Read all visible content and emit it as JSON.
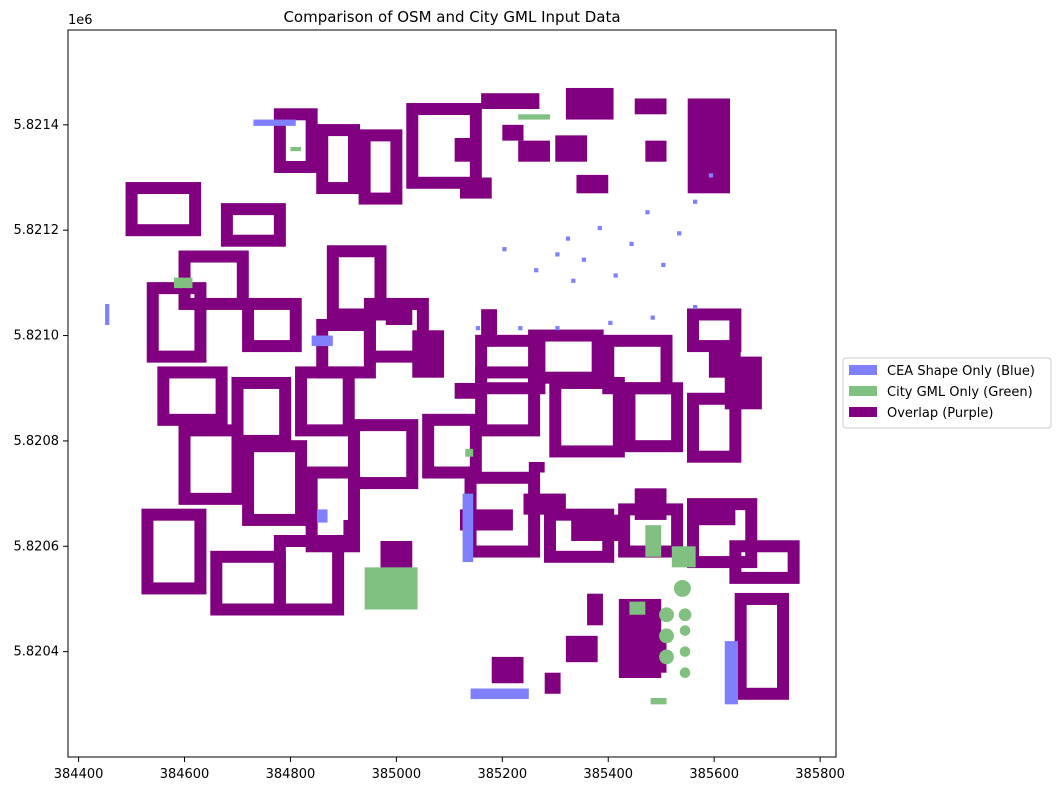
{
  "chart_data": {
    "type": "map",
    "title": "Comparison of OSM and City GML Input Data",
    "y_offset_label": "1e6",
    "xlim": [
      384380,
      385830
    ],
    "ylim": [
      5820200,
      5821580
    ],
    "x_ticks": [
      384400,
      384600,
      384800,
      385000,
      385200,
      385400,
      385600,
      385800
    ],
    "x_tick_labels": [
      "384400",
      "384600",
      "384800",
      "385000",
      "385200",
      "385400",
      "385600",
      "385800"
    ],
    "y_ticks": [
      5820400,
      5820600,
      5820800,
      5821000,
      5821200,
      5821400
    ],
    "y_tick_labels": [
      "5.8204",
      "5.8206",
      "5.8208",
      "5.8210",
      "5.8212",
      "5.8214"
    ],
    "grid": false,
    "legend_position": "right",
    "series": [
      {
        "name": "CEA Shape Only (Blue)",
        "color": "#8080ff",
        "rects": [
          [
            384730,
            5821398,
            80,
            12
          ],
          [
            384840,
            5820980,
            40,
            20
          ],
          [
            384850,
            5820645,
            20,
            25
          ],
          [
            385125,
            5820570,
            20,
            130
          ],
          [
            385140,
            5820310,
            110,
            20
          ],
          [
            385620,
            5820300,
            25,
            120
          ],
          [
            384450,
            5821020,
            8,
            40
          ],
          [
            385300,
            5821150,
            8,
            8
          ],
          [
            385320,
            5821180,
            8,
            8
          ],
          [
            385350,
            5821140,
            8,
            8
          ],
          [
            385380,
            5821200,
            8,
            8
          ],
          [
            385410,
            5821110,
            8,
            8
          ],
          [
            385440,
            5821170,
            8,
            8
          ],
          [
            385470,
            5821230,
            8,
            8
          ],
          [
            385500,
            5821130,
            8,
            8
          ],
          [
            385530,
            5821190,
            8,
            8
          ],
          [
            385560,
            5821250,
            8,
            8
          ],
          [
            385590,
            5821300,
            8,
            8
          ],
          [
            385330,
            5821100,
            8,
            8
          ],
          [
            385260,
            5821120,
            8,
            8
          ],
          [
            385200,
            5821160,
            8,
            8
          ],
          [
            385150,
            5821010,
            8,
            8
          ],
          [
            385230,
            5821010,
            8,
            8
          ],
          [
            385300,
            5821010,
            8,
            8
          ],
          [
            385400,
            5821020,
            8,
            8
          ],
          [
            385480,
            5821030,
            8,
            8
          ],
          [
            385560,
            5821050,
            8,
            8
          ]
        ]
      },
      {
        "name": "City GML Only (Green)",
        "color": "#80c080",
        "rects": [
          [
            384940,
            5820480,
            100,
            80
          ],
          [
            385470,
            5820580,
            30,
            60
          ],
          [
            385520,
            5820560,
            45,
            40
          ],
          [
            385480,
            5820300,
            30,
            12
          ],
          [
            384580,
            5821090,
            35,
            20
          ],
          [
            385440,
            5820470,
            30,
            25
          ],
          [
            385230,
            5821410,
            60,
            10
          ],
          [
            384800,
            5821350,
            20,
            8
          ],
          [
            385130,
            5820770,
            15,
            15
          ]
        ],
        "circles": [
          [
            385540,
            5820520,
            16
          ],
          [
            385510,
            5820470,
            14
          ],
          [
            385510,
            5820430,
            14
          ],
          [
            385510,
            5820390,
            14
          ],
          [
            385545,
            5820470,
            12
          ],
          [
            385545,
            5820440,
            10
          ],
          [
            385545,
            5820400,
            10
          ],
          [
            385545,
            5820360,
            10
          ]
        ]
      },
      {
        "name": "Overlap (Purple)",
        "color": "#800080",
        "rects": [
          [
            385160,
            5821430,
            110,
            30
          ],
          [
            385320,
            5821410,
            90,
            60
          ],
          [
            385450,
            5821420,
            60,
            30
          ],
          [
            385550,
            5821270,
            80,
            180
          ],
          [
            385110,
            5821330,
            40,
            45
          ],
          [
            385120,
            5821260,
            60,
            40
          ],
          [
            385230,
            5821330,
            60,
            40
          ],
          [
            385300,
            5821330,
            60,
            50
          ],
          [
            385340,
            5821270,
            60,
            35
          ],
          [
            385470,
            5821330,
            40,
            40
          ],
          [
            385200,
            5821370,
            40,
            30
          ],
          [
            384970,
            5820550,
            60,
            60
          ],
          [
            385320,
            5820380,
            60,
            50
          ],
          [
            385420,
            5820350,
            80,
            150
          ],
          [
            385490,
            5820360,
            20,
            80
          ],
          [
            385360,
            5820450,
            30,
            60
          ],
          [
            385180,
            5820340,
            60,
            50
          ],
          [
            385280,
            5820320,
            30,
            40
          ],
          [
            385160,
            5821000,
            30,
            50
          ],
          [
            385030,
            5820920,
            60,
            90
          ],
          [
            384980,
            5821020,
            50,
            40
          ],
          [
            385110,
            5820880,
            60,
            30
          ],
          [
            385590,
            5820920,
            60,
            60
          ],
          [
            385620,
            5820860,
            70,
            100
          ],
          [
            385120,
            5820630,
            100,
            40
          ],
          [
            385240,
            5820660,
            80,
            40
          ],
          [
            385330,
            5820610,
            90,
            50
          ],
          [
            385450,
            5820650,
            60,
            60
          ],
          [
            385560,
            5820640,
            80,
            40
          ],
          [
            384900,
            5820600,
            20,
            50
          ],
          [
            385140,
            5820730,
            20,
            20
          ],
          [
            385250,
            5820740,
            30,
            20
          ],
          [
            385320,
            5820770,
            40,
            20
          ]
        ],
        "rings": [
          [
            384500,
            5821200,
            120,
            80
          ],
          [
            384680,
            5821180,
            100,
            60
          ],
          [
            384540,
            5820960,
            90,
            130
          ],
          [
            384600,
            5821060,
            110,
            90
          ],
          [
            384720,
            5820980,
            90,
            80
          ],
          [
            384860,
            5820930,
            90,
            90
          ],
          [
            384880,
            5821040,
            90,
            120
          ],
          [
            384950,
            5820960,
            100,
            100
          ],
          [
            384560,
            5820840,
            110,
            90
          ],
          [
            384700,
            5820800,
            90,
            110
          ],
          [
            384820,
            5820820,
            90,
            110
          ],
          [
            384600,
            5820690,
            100,
            130
          ],
          [
            384720,
            5820650,
            100,
            140
          ],
          [
            384840,
            5820600,
            80,
            140
          ],
          [
            384530,
            5820520,
            100,
            140
          ],
          [
            384660,
            5820480,
            120,
            100
          ],
          [
            384780,
            5820480,
            110,
            130
          ],
          [
            384920,
            5820720,
            110,
            110
          ],
          [
            385060,
            5820740,
            90,
            100
          ],
          [
            385160,
            5820820,
            100,
            110
          ],
          [
            385300,
            5820780,
            120,
            130
          ],
          [
            385440,
            5820790,
            90,
            110
          ],
          [
            385560,
            5820770,
            80,
            110
          ],
          [
            385140,
            5820590,
            120,
            140
          ],
          [
            385290,
            5820580,
            110,
            80
          ],
          [
            385430,
            5820590,
            100,
            80
          ],
          [
            385560,
            5820570,
            110,
            110
          ],
          [
            385650,
            5820320,
            80,
            180
          ],
          [
            385640,
            5820540,
            110,
            60
          ],
          [
            385560,
            5820980,
            80,
            60
          ],
          [
            385160,
            5820900,
            110,
            90
          ],
          [
            385260,
            5820920,
            120,
            80
          ],
          [
            385400,
            5820900,
            110,
            90
          ],
          [
            385030,
            5821290,
            120,
            140
          ],
          [
            384780,
            5821320,
            60,
            100
          ],
          [
            384860,
            5821280,
            60,
            110
          ],
          [
            384940,
            5821260,
            60,
            120
          ]
        ]
      }
    ]
  },
  "legend": {
    "items": [
      {
        "label": "CEA Shape Only (Blue)",
        "color": "#8080ff"
      },
      {
        "label": "City GML Only (Green)",
        "color": "#80c080"
      },
      {
        "label": "Overlap (Purple)",
        "color": "#800080"
      }
    ]
  }
}
